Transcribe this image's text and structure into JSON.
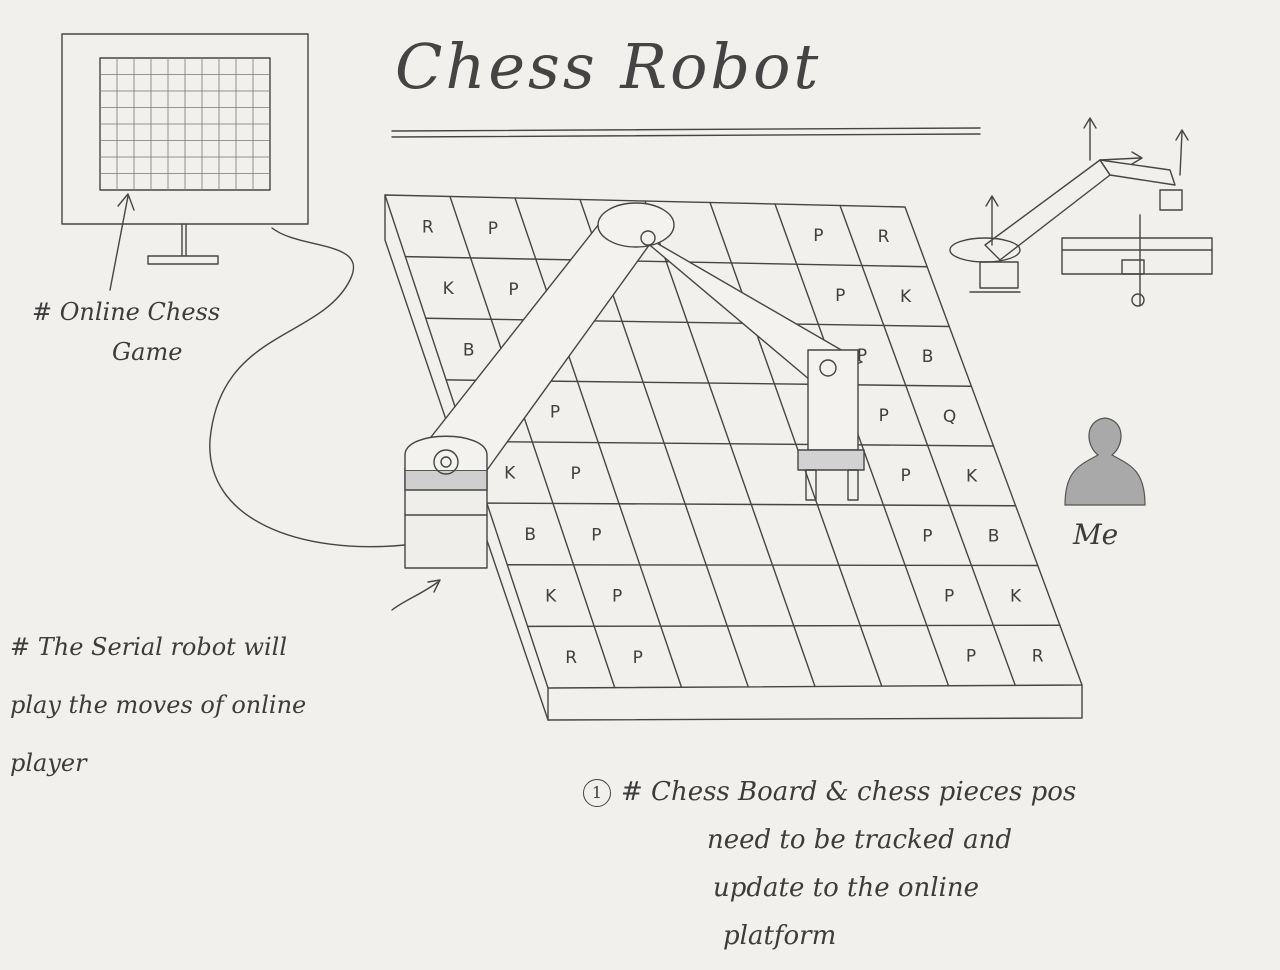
{
  "title": "Chess Robot",
  "notes": {
    "online_game": [
      "# Online Chess",
      "Game"
    ],
    "serial_robot": [
      "# The Serial robot will",
      "play the moves of online",
      "player"
    ],
    "tracking": {
      "marker": "1",
      "lines": [
        "# Chess Board & chess pieces pos",
        "need to be tracked and",
        "update to the online",
        "platform"
      ]
    }
  },
  "person_label": "Me",
  "board_pieces": [
    {
      "label": "R",
      "row": 0,
      "col": 0
    },
    {
      "label": "P",
      "row": 0,
      "col": 1
    },
    {
      "label": "P",
      "row": 0,
      "col": 6
    },
    {
      "label": "R",
      "row": 0,
      "col": 7
    },
    {
      "label": "K",
      "row": 1,
      "col": 0
    },
    {
      "label": "P",
      "row": 1,
      "col": 1
    },
    {
      "label": "P",
      "row": 1,
      "col": 6
    },
    {
      "label": "K",
      "row": 1,
      "col": 7
    },
    {
      "label": "B",
      "row": 2,
      "col": 0
    },
    {
      "label": "P",
      "row": 2,
      "col": 6
    },
    {
      "label": "B",
      "row": 2,
      "col": 7
    },
    {
      "label": "P",
      "row": 3,
      "col": 1
    },
    {
      "label": "P",
      "row": 3,
      "col": 6
    },
    {
      "label": "Q",
      "row": 3,
      "col": 7
    },
    {
      "label": "K",
      "row": 4,
      "col": 0
    },
    {
      "label": "P",
      "row": 4,
      "col": 1
    },
    {
      "label": "P",
      "row": 4,
      "col": 6
    },
    {
      "label": "K",
      "row": 4,
      "col": 7
    },
    {
      "label": "B",
      "row": 5,
      "col": 0
    },
    {
      "label": "P",
      "row": 5,
      "col": 1
    },
    {
      "label": "P",
      "row": 5,
      "col": 6
    },
    {
      "label": "B",
      "row": 5,
      "col": 7
    },
    {
      "label": "K",
      "row": 6,
      "col": 0
    },
    {
      "label": "P",
      "row": 6,
      "col": 1
    },
    {
      "label": "P",
      "row": 6,
      "col": 6
    },
    {
      "label": "K",
      "row": 6,
      "col": 7
    },
    {
      "label": "R",
      "row": 7,
      "col": 0
    },
    {
      "label": "P",
      "row": 7,
      "col": 1
    },
    {
      "label": "P",
      "row": 7,
      "col": 6
    },
    {
      "label": "R",
      "row": 7,
      "col": 7
    }
  ]
}
